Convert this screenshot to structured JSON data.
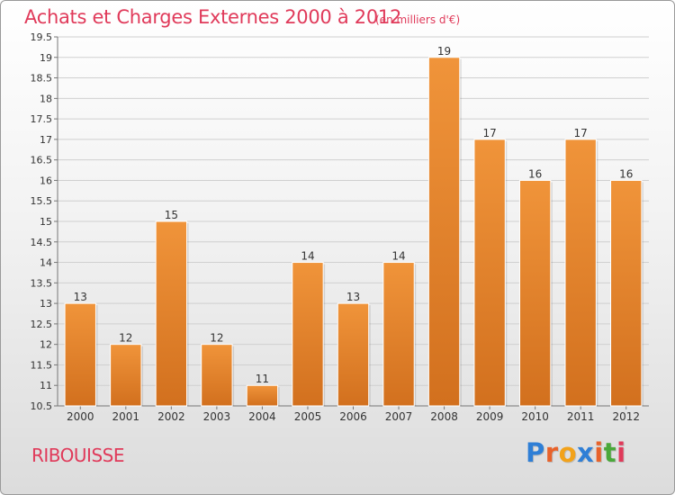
{
  "header": {
    "title": "Achats et Charges Externes 2000 à 2012",
    "unit": "(en milliers d'€)"
  },
  "commune": "RIBOUISSE",
  "brand": {
    "letters": [
      "P",
      "r",
      "o",
      "x",
      "i",
      "t",
      "i"
    ],
    "colors": [
      "#2f7fd6",
      "#e8622a",
      "#f2a21a",
      "#2f7fd6",
      "#e8622a",
      "#4aa83a",
      "#e03a5a"
    ]
  },
  "chart_data": {
    "type": "bar",
    "title": "Achats et Charges Externes 2000 à 2012",
    "subtitle": "(en milliers d'€)",
    "categories": [
      "2000",
      "2001",
      "2002",
      "2003",
      "2004",
      "2005",
      "2006",
      "2007",
      "2008",
      "2009",
      "2010",
      "2011",
      "2012"
    ],
    "values": [
      13,
      12,
      15,
      12,
      11,
      14,
      13,
      14,
      19,
      17,
      16,
      17,
      16
    ],
    "ylim": [
      10.5,
      19.5
    ],
    "yticks": [
      "10.5",
      "11",
      "11.5",
      "12",
      "12.5",
      "13",
      "13.5",
      "14",
      "14.5",
      "15",
      "15.5",
      "16",
      "16.5",
      "17",
      "17.5",
      "18",
      "18.5",
      "19",
      "19.5"
    ],
    "grid": true,
    "bar_color": "#f0943a",
    "bar_color_dark": "#d2701e"
  }
}
